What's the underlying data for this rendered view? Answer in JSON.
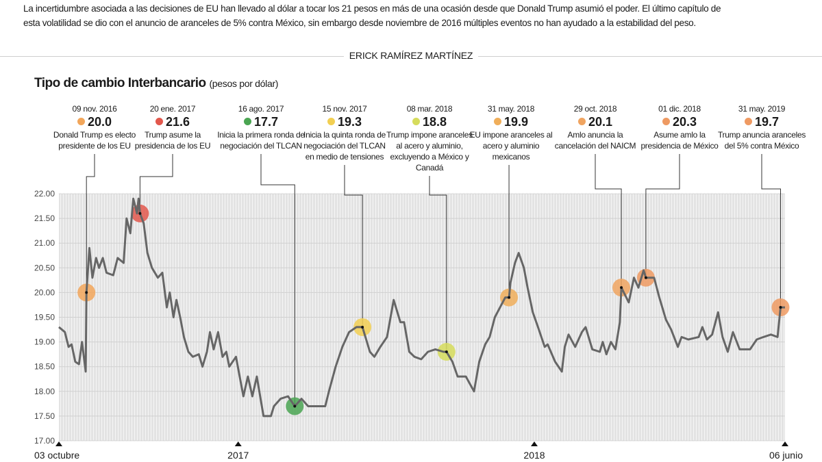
{
  "intro": "La incertidumbre asociada a las decisiones de EU han llevado al dólar a tocar los 21 pesos en más de una ocasión desde que Donald Trump asumió el poder. El último capítulo de esta volatilidad se dio con el anuncio de aranceles de 5% contra México, sin embargo desde noviembre de 2016 múltiples eventos no han ayudado a la estabilidad del peso.",
  "byline": "ERICK RAMÍREZ MARTÍNEZ",
  "chart_data": {
    "type": "line",
    "title": "Tipo de cambio Interbancario",
    "subtitle": "(pesos por dólar)",
    "ylim": [
      17,
      22
    ],
    "y_ticks": [
      "22.00",
      "21.50",
      "21.00",
      "20.50",
      "20.00",
      "19.50",
      "19.00",
      "18.50",
      "18.00",
      "17.50",
      "17.00"
    ],
    "x_ticks": [
      "03 octubre",
      "2017",
      "2018",
      "06 junio"
    ],
    "grid": true,
    "line_color": "#666666",
    "series": [
      [
        "2016-10-03",
        19.3
      ],
      [
        "2016-10-11",
        19.2
      ],
      [
        "2016-10-16",
        18.9
      ],
      [
        "2016-10-20",
        18.95
      ],
      [
        "2016-10-25",
        18.6
      ],
      [
        "2016-10-30",
        18.55
      ],
      [
        "2016-11-03",
        19.0
      ],
      [
        "2016-11-08",
        18.4
      ],
      [
        "2016-11-09",
        20.0
      ],
      [
        "2016-11-13",
        20.9
      ],
      [
        "2016-11-17",
        20.3
      ],
      [
        "2016-11-22",
        20.7
      ],
      [
        "2016-11-26",
        20.5
      ],
      [
        "2016-12-01",
        20.7
      ],
      [
        "2016-12-06",
        20.4
      ],
      [
        "2016-12-15",
        20.35
      ],
      [
        "2016-12-21",
        20.7
      ],
      [
        "2016-12-29",
        20.6
      ],
      [
        "2017-01-02",
        21.5
      ],
      [
        "2017-01-07",
        21.2
      ],
      [
        "2017-01-11",
        21.9
      ],
      [
        "2017-01-16",
        21.6
      ],
      [
        "2017-01-18",
        21.9
      ],
      [
        "2017-01-20",
        21.6
      ],
      [
        "2017-01-25",
        21.4
      ],
      [
        "2017-01-30",
        20.8
      ],
      [
        "2017-02-05",
        20.5
      ],
      [
        "2017-02-13",
        20.3
      ],
      [
        "2017-02-19",
        20.4
      ],
      [
        "2017-02-25",
        19.7
      ],
      [
        "2017-03-01",
        20.0
      ],
      [
        "2017-03-06",
        19.5
      ],
      [
        "2017-03-10",
        19.85
      ],
      [
        "2017-03-15",
        19.5
      ],
      [
        "2017-03-20",
        19.1
      ],
      [
        "2017-03-26",
        18.8
      ],
      [
        "2017-04-01",
        18.7
      ],
      [
        "2017-04-09",
        18.75
      ],
      [
        "2017-04-14",
        18.5
      ],
      [
        "2017-04-20",
        18.8
      ],
      [
        "2017-04-24",
        19.2
      ],
      [
        "2017-04-29",
        18.85
      ],
      [
        "2017-05-05",
        19.2
      ],
      [
        "2017-05-11",
        18.7
      ],
      [
        "2017-05-16",
        18.8
      ],
      [
        "2017-05-20",
        18.5
      ],
      [
        "2017-05-29",
        18.7
      ],
      [
        "2017-06-03",
        18.3
      ],
      [
        "2017-06-08",
        17.9
      ],
      [
        "2017-06-14",
        18.3
      ],
      [
        "2017-06-20",
        17.9
      ],
      [
        "2017-06-26",
        18.3
      ],
      [
        "2017-07-05",
        17.5
      ],
      [
        "2017-07-15",
        17.5
      ],
      [
        "2017-07-19",
        17.7
      ],
      [
        "2017-07-28",
        17.85
      ],
      [
        "2017-08-07",
        17.9
      ],
      [
        "2017-08-16",
        17.7
      ],
      [
        "2017-08-25",
        17.85
      ],
      [
        "2017-09-03",
        17.7
      ],
      [
        "2017-09-26",
        17.7
      ],
      [
        "2017-10-01",
        18.0
      ],
      [
        "2017-10-10",
        18.5
      ],
      [
        "2017-10-19",
        18.9
      ],
      [
        "2017-10-28",
        19.2
      ],
      [
        "2017-11-07",
        19.3
      ],
      [
        "2017-11-15",
        19.3
      ],
      [
        "2017-11-25",
        18.8
      ],
      [
        "2017-12-01",
        18.7
      ],
      [
        "2017-12-09",
        18.9
      ],
      [
        "2017-12-18",
        19.1
      ],
      [
        "2017-12-27",
        19.85
      ],
      [
        "2018-01-05",
        19.4
      ],
      [
        "2018-01-10",
        19.4
      ],
      [
        "2018-01-17",
        18.8
      ],
      [
        "2018-01-24",
        18.7
      ],
      [
        "2018-02-02",
        18.65
      ],
      [
        "2018-02-11",
        18.8
      ],
      [
        "2018-02-21",
        18.85
      ],
      [
        "2018-03-04",
        18.8
      ],
      [
        "2018-03-08",
        18.8
      ],
      [
        "2018-03-16",
        18.6
      ],
      [
        "2018-03-23",
        18.3
      ],
      [
        "2018-04-03",
        18.3
      ],
      [
        "2018-04-14",
        18.0
      ],
      [
        "2018-04-21",
        18.6
      ],
      [
        "2018-04-29",
        18.95
      ],
      [
        "2018-05-05",
        19.1
      ],
      [
        "2018-05-12",
        19.5
      ],
      [
        "2018-05-19",
        19.7
      ],
      [
        "2018-05-26",
        19.9
      ],
      [
        "2018-05-31",
        19.9
      ],
      [
        "2018-06-02",
        20.2
      ],
      [
        "2018-06-08",
        20.6
      ],
      [
        "2018-06-13",
        20.8
      ],
      [
        "2018-06-20",
        20.5
      ],
      [
        "2018-06-25",
        20.1
      ],
      [
        "2018-07-02",
        19.6
      ],
      [
        "2018-07-09",
        19.3
      ],
      [
        "2018-07-18",
        18.9
      ],
      [
        "2018-07-22",
        18.95
      ],
      [
        "2018-08-01",
        18.6
      ],
      [
        "2018-08-10",
        18.4
      ],
      [
        "2018-08-14",
        18.9
      ],
      [
        "2018-08-19",
        19.15
      ],
      [
        "2018-08-28",
        18.9
      ],
      [
        "2018-09-06",
        19.2
      ],
      [
        "2018-09-11",
        19.3
      ],
      [
        "2018-09-20",
        18.85
      ],
      [
        "2018-09-30",
        18.8
      ],
      [
        "2018-10-04",
        19.0
      ],
      [
        "2018-10-09",
        18.75
      ],
      [
        "2018-10-15",
        19.0
      ],
      [
        "2018-10-21",
        18.85
      ],
      [
        "2018-10-27",
        19.4
      ],
      [
        "2018-10-29",
        20.1
      ],
      [
        "2018-11-08",
        19.8
      ],
      [
        "2018-11-15",
        20.3
      ],
      [
        "2018-11-21",
        20.1
      ],
      [
        "2018-11-28",
        20.45
      ],
      [
        "2018-12-01",
        20.3
      ],
      [
        "2018-12-12",
        20.3
      ],
      [
        "2018-12-19",
        19.9
      ],
      [
        "2018-12-28",
        19.45
      ],
      [
        "2019-01-04",
        19.25
      ],
      [
        "2019-01-13",
        18.9
      ],
      [
        "2019-01-18",
        19.1
      ],
      [
        "2019-01-27",
        19.05
      ],
      [
        "2019-02-10",
        19.1
      ],
      [
        "2019-02-15",
        19.3
      ],
      [
        "2019-02-21",
        19.05
      ],
      [
        "2019-02-28",
        19.15
      ],
      [
        "2019-03-08",
        19.6
      ],
      [
        "2019-03-14",
        19.1
      ],
      [
        "2019-03-21",
        18.8
      ],
      [
        "2019-03-28",
        19.2
      ],
      [
        "2019-04-06",
        18.85
      ],
      [
        "2019-04-20",
        18.85
      ],
      [
        "2019-04-29",
        19.05
      ],
      [
        "2019-05-08",
        19.1
      ],
      [
        "2019-05-18",
        19.15
      ],
      [
        "2019-05-27",
        19.1
      ],
      [
        "2019-05-31",
        19.7
      ],
      [
        "2019-06-06",
        19.7
      ]
    ],
    "events": [
      {
        "date_label": "09 nov. 2016",
        "date": "2016-11-09",
        "value": "20.0",
        "text": "Donald Trump es electo presidente de los EU",
        "color": "#f2a65a"
      },
      {
        "date_label": "20 ene. 2017",
        "date": "2017-01-20",
        "value": "21.6",
        "text": "Trump asume la presidencia de los EU",
        "color": "#e2574c"
      },
      {
        "date_label": "16 ago. 2017",
        "date": "2017-08-16",
        "value": "17.7",
        "text": "Inicia la primera ronda de negociación del TLCAN",
        "color": "#4aa552"
      },
      {
        "date_label": "15 nov. 2017",
        "date": "2017-11-15",
        "value": "19.3",
        "text": "Inicia la quinta ronda de negociación del TLCAN en medio de tensiones",
        "color": "#f2cf52"
      },
      {
        "date_label": "08 mar. 2018",
        "date": "2018-03-08",
        "value": "18.8",
        "text": "Trump impone aranceles al acero y aluminio, excluyendo a México y Canadá",
        "color": "#d6dc5c"
      },
      {
        "date_label": "31 may. 2018",
        "date": "2018-05-31",
        "value": "19.9",
        "text": "EU impone aranceles al acero y aluminio mexicanos",
        "color": "#f0ae5a"
      },
      {
        "date_label": "29 oct. 2018",
        "date": "2018-10-29",
        "value": "20.1",
        "text": "Amlo anuncia la cancelación del NAICM",
        "color": "#f0a460"
      },
      {
        "date_label": "01 dic. 2018",
        "date": "2018-12-01",
        "value": "20.3",
        "text": "Asume amlo la presidencia de México",
        "color": "#ee9a62"
      },
      {
        "date_label": "31 may. 2019",
        "date": "2019-05-31",
        "value": "19.7",
        "text": "Trump anuncia aranceles del 5% contra México",
        "color": "#ef9a62"
      }
    ]
  }
}
